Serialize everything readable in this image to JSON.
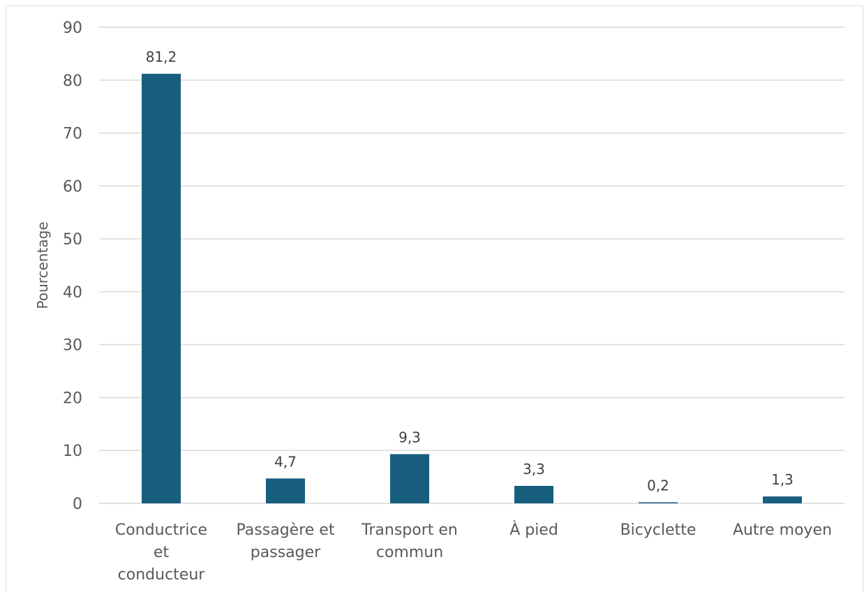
{
  "chart_data": {
    "type": "bar",
    "title": "",
    "xlabel": "",
    "ylabel": "Pourcentage",
    "ylim": [
      0,
      90
    ],
    "yticks": [
      0,
      10,
      20,
      30,
      40,
      50,
      60,
      70,
      80,
      90
    ],
    "grid": true,
    "legend": "none",
    "categories": [
      "Conductrice et conducteur",
      "Passagère et passager",
      "Transport en commun",
      "À pied",
      "Bicyclette",
      "Autre moyen"
    ],
    "category_lines": [
      [
        "Conductrice",
        "et",
        "conducteur"
      ],
      [
        "Passagère et",
        "passager"
      ],
      [
        "Transport en",
        "commun"
      ],
      [
        "À pied"
      ],
      [
        "Bicyclette"
      ],
      [
        "Autre moyen"
      ]
    ],
    "values": [
      81.2,
      4.7,
      9.3,
      3.3,
      0.2,
      1.3
    ],
    "value_labels": [
      "81,2",
      "4,7",
      "9,3",
      "3,3",
      "0,2",
      "1,3"
    ],
    "colors": {
      "bar": "#175e7f",
      "gridline": "#d9d9d9",
      "axis": "#d9d9d9",
      "text": "#595959"
    }
  }
}
